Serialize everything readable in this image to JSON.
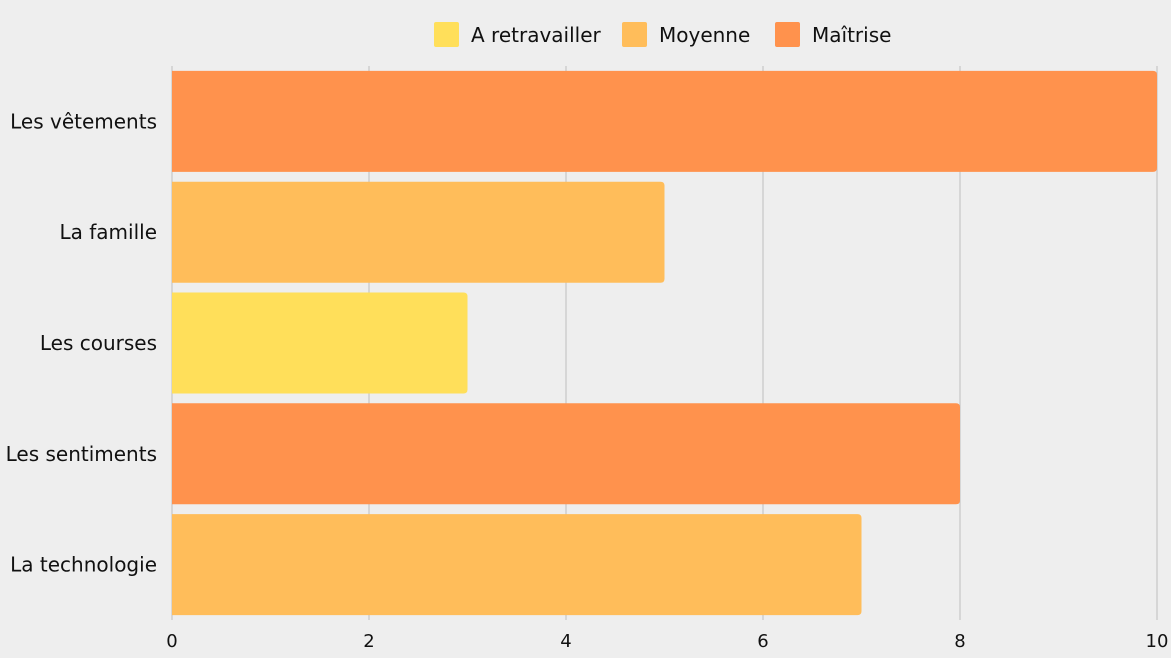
{
  "chart_data": {
    "type": "bar",
    "orientation": "horizontal",
    "legend_position": "top",
    "grid": true,
    "xlim": [
      0,
      10
    ],
    "x_ticks": [
      "0",
      "2",
      "4",
      "6",
      "8",
      "10"
    ],
    "title": "",
    "xlabel": "",
    "ylabel": "",
    "legend": [
      {
        "label": "A retravailler",
        "color": "#ffdf5a"
      },
      {
        "label": "Moyenne",
        "color": "#ffbd5a"
      },
      {
        "label": "Maîtrise",
        "color": "#ff924d"
      }
    ],
    "categories": [
      "Les vêtements",
      "La famille",
      "Les courses",
      "Les sentiments",
      "La technologie"
    ],
    "values": [
      10,
      5,
      3,
      8,
      7
    ],
    "bar_levels": [
      "Maîtrise",
      "Moyenne",
      "A retravailler",
      "Maîtrise",
      "Moyenne"
    ]
  }
}
